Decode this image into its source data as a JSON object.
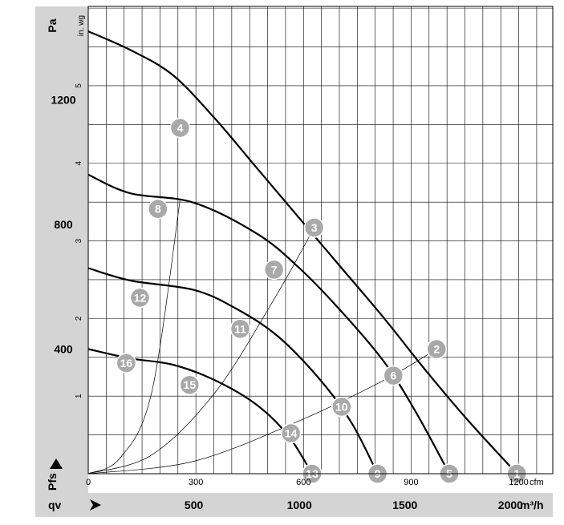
{
  "chart_data": {
    "type": "line",
    "y_unit_left": "Pa",
    "y_unit_right": "in. wg",
    "pfs_label": "Pfs",
    "qv_label": "qv",
    "x_unit_cfm": "cfm",
    "x_unit_m3h": "m³/h",
    "pa_ticks": [
      "400",
      "800",
      "1200"
    ],
    "inwg_ticks": [
      "1",
      "2",
      "3",
      "4",
      "5"
    ],
    "cfm_ticks": [
      "0",
      "300",
      "600",
      "900",
      "1200"
    ],
    "m3h_ticks": [
      "500",
      "1000",
      "1500",
      "2000"
    ],
    "xlim_m3h": [
      0,
      2200
    ],
    "ylim_pa": [
      0,
      1500
    ],
    "grid": true,
    "series": [
      {
        "values": [
          [
            0,
            1420
          ],
          [
            200,
            1360
          ],
          [
            400,
            1280
          ],
          [
            600,
            1140
          ],
          [
            800,
            980
          ],
          [
            1000,
            820
          ],
          [
            1200,
            660
          ],
          [
            1400,
            500
          ],
          [
            1600,
            330
          ],
          [
            1800,
            170
          ],
          [
            2030,
            0
          ]
        ]
      },
      {
        "values": [
          [
            0,
            960
          ],
          [
            200,
            900
          ],
          [
            500,
            870
          ],
          [
            800,
            770
          ],
          [
            1000,
            660
          ],
          [
            1200,
            520
          ],
          [
            1400,
            360
          ],
          [
            1550,
            200
          ],
          [
            1710,
            0
          ]
        ]
      },
      {
        "values": [
          [
            0,
            660
          ],
          [
            200,
            620
          ],
          [
            500,
            590
          ],
          [
            700,
            530
          ],
          [
            900,
            440
          ],
          [
            1100,
            300
          ],
          [
            1250,
            160
          ],
          [
            1370,
            0
          ]
        ]
      },
      {
        "values": [
          [
            0,
            400
          ],
          [
            200,
            370
          ],
          [
            400,
            350
          ],
          [
            600,
            300
          ],
          [
            800,
            220
          ],
          [
            950,
            120
          ],
          [
            1060,
            0
          ]
        ]
      }
    ],
    "system_curves": [
      {
        "values": [
          [
            0,
            0
          ],
          [
            150,
            50
          ],
          [
            300,
            260
          ],
          [
            435,
            880
          ]
        ]
      },
      {
        "values": [
          [
            0,
            0
          ],
          [
            300,
            60
          ],
          [
            600,
            260
          ],
          [
            880,
            560
          ],
          [
            1070,
            790
          ]
        ]
      },
      {
        "values": [
          [
            0,
            0
          ],
          [
            500,
            40
          ],
          [
            1000,
            170
          ],
          [
            1400,
            300
          ],
          [
            1650,
            400
          ]
        ]
      }
    ],
    "operating_points": [
      {
        "label": "1",
        "q": 2030,
        "p": 0
      },
      {
        "label": "2",
        "q": 1650,
        "p": 400
      },
      {
        "label": "3",
        "q": 1070,
        "p": 790
      },
      {
        "label": "4",
        "q": 435,
        "p": 1110
      },
      {
        "label": "5",
        "q": 1710,
        "p": 0
      },
      {
        "label": "6",
        "q": 1445,
        "p": 315
      },
      {
        "label": "7",
        "q": 880,
        "p": 655
      },
      {
        "label": "8",
        "q": 330,
        "p": 850
      },
      {
        "label": "9",
        "q": 1370,
        "p": 0
      },
      {
        "label": "10",
        "q": 1200,
        "p": 215
      },
      {
        "label": "11",
        "q": 720,
        "p": 465
      },
      {
        "label": "12",
        "q": 245,
        "p": 565
      },
      {
        "label": "13",
        "q": 1060,
        "p": 0
      },
      {
        "label": "14",
        "q": 960,
        "p": 130
      },
      {
        "label": "15",
        "q": 480,
        "p": 285
      },
      {
        "label": "16",
        "q": 180,
        "p": 355
      }
    ]
  }
}
